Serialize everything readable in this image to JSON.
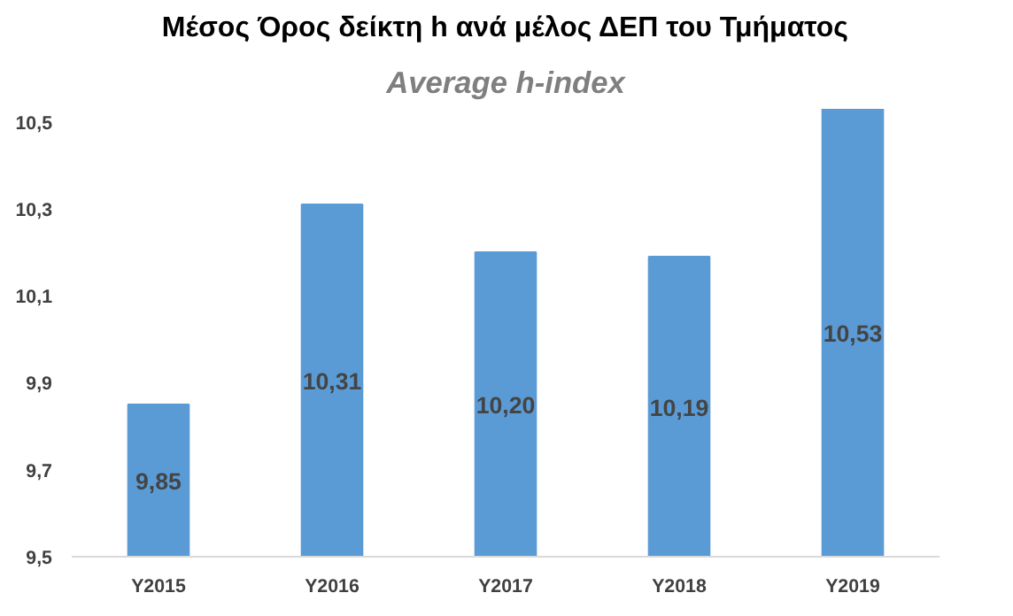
{
  "chart_data": {
    "type": "bar",
    "title": "Μέσος Όρος δείκτη h ανά μέλος ΔΕΠ του Τμήματος",
    "subtitle": "Average h-index",
    "categories": [
      "Y2015",
      "Y2016",
      "Y2017",
      "Y2018",
      "Y2019"
    ],
    "values": [
      9.85,
      10.31,
      10.2,
      10.19,
      10.53
    ],
    "value_labels": [
      "9,85",
      "10,31",
      "10,20",
      "10,19",
      "10,53"
    ],
    "color": "#5b9bd5",
    "ylim": [
      9.5,
      10.53
    ],
    "yticks": [
      {
        "value": 9.5,
        "label": "9,5"
      },
      {
        "value": 9.7,
        "label": "9,7"
      },
      {
        "value": 9.9,
        "label": "9,9"
      },
      {
        "value": 10.1,
        "label": "10,1"
      },
      {
        "value": 10.3,
        "label": "10,3"
      },
      {
        "value": 10.5,
        "label": "10,5"
      }
    ],
    "grid": false
  }
}
